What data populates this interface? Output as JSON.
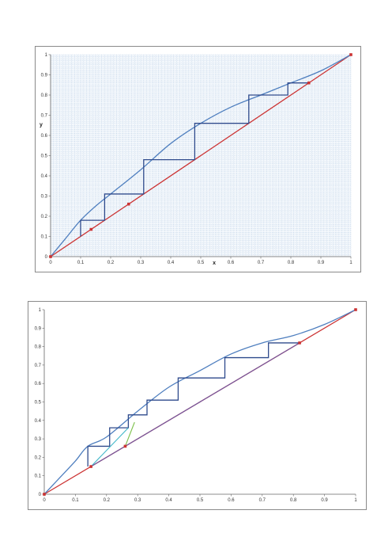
{
  "chart_data": [
    {
      "type": "line",
      "xlabel": "x",
      "ylabel": "y",
      "xlim": [
        0,
        1
      ],
      "ylim": [
        0,
        1
      ],
      "grid": true,
      "x_ticks": [
        "0",
        "0.1",
        "0.2",
        "0.3",
        "0.4",
        "0.5",
        "0.6",
        "0.7",
        "0.8",
        "0.9",
        "1"
      ],
      "y_ticks": [
        "0",
        "0.1",
        "0.2",
        "0.3",
        "0.4",
        "0.5",
        "0.6",
        "0.7",
        "0.8",
        "0.9",
        "1"
      ],
      "colors": {
        "curve": "#4f7fbf",
        "diagonal": "#cc3333",
        "steps": "#2e4a8c",
        "markers": "#cc3333",
        "grid": "#9cb8d8"
      },
      "series": [
        {
          "role": "equilibrium-curve",
          "x": [
            0,
            0.05,
            0.1,
            0.15,
            0.2,
            0.3,
            0.4,
            0.5,
            0.6,
            0.7,
            0.8,
            0.9,
            1
          ],
          "y": [
            0,
            0.09,
            0.18,
            0.25,
            0.31,
            0.43,
            0.56,
            0.66,
            0.74,
            0.8,
            0.86,
            0.92,
            1
          ]
        },
        {
          "role": "diagonal",
          "x": [
            0,
            1
          ],
          "y": [
            0,
            1
          ]
        },
        {
          "role": "stages",
          "x": [
            0.1,
            0.1,
            0.18,
            0.18,
            0.31,
            0.31,
            0.48,
            0.48,
            0.66,
            0.66,
            0.79,
            0.79,
            0.86
          ],
          "y": [
            0.1,
            0.18,
            0.18,
            0.31,
            0.31,
            0.48,
            0.48,
            0.66,
            0.66,
            0.8,
            0.8,
            0.86,
            0.86
          ]
        },
        {
          "role": "points",
          "x": [
            0,
            0.135,
            0.26,
            0.86,
            1
          ],
          "y": [
            0,
            0.135,
            0.26,
            0.86,
            1
          ]
        }
      ]
    },
    {
      "type": "line",
      "xlim": [
        0,
        1
      ],
      "ylim": [
        0,
        1
      ],
      "grid": false,
      "x_ticks": [
        "0",
        "0.1",
        "0.2",
        "0.3",
        "0.4",
        "0.5",
        "0.6",
        "0.7",
        "0.8",
        "0.9",
        "1"
      ],
      "y_ticks": [
        "0",
        "0.1",
        "0.2",
        "0.3",
        "0.4",
        "0.5",
        "0.6",
        "0.7",
        "0.8",
        "0.9",
        "1"
      ],
      "colors": {
        "curve": "#4f7fbf",
        "diagonal": "#cc3333",
        "steps": "#2e4a8c",
        "markers": "#cc3333",
        "cyan": "#3fb6c8",
        "green": "#7cc04a",
        "purple": "#6a5aa8"
      },
      "series": [
        {
          "role": "equilibrium-curve",
          "x": [
            0,
            0.05,
            0.1,
            0.14,
            0.2,
            0.3,
            0.4,
            0.5,
            0.6,
            0.7,
            0.8,
            0.9,
            1
          ],
          "y": [
            0,
            0.09,
            0.18,
            0.26,
            0.31,
            0.45,
            0.58,
            0.67,
            0.76,
            0.82,
            0.86,
            0.92,
            1
          ]
        },
        {
          "role": "diagonal",
          "x": [
            0,
            1
          ],
          "y": [
            0,
            1
          ]
        },
        {
          "role": "stages",
          "x": [
            0.14,
            0.14,
            0.21,
            0.21,
            0.27,
            0.27,
            0.33,
            0.33,
            0.43,
            0.43,
            0.58,
            0.58,
            0.72,
            0.72,
            0.82
          ],
          "y": [
            0.15,
            0.26,
            0.26,
            0.36,
            0.36,
            0.43,
            0.43,
            0.51,
            0.51,
            0.63,
            0.63,
            0.74,
            0.74,
            0.82,
            0.82
          ]
        },
        {
          "role": "operating-line",
          "x": [
            0.15,
            0.82
          ],
          "y": [
            0.15,
            0.82
          ]
        },
        {
          "role": "cyan-line",
          "x": [
            0.15,
            0.27
          ],
          "y": [
            0.15,
            0.36
          ]
        },
        {
          "role": "green-line",
          "x": [
            0.26,
            0.29
          ],
          "y": [
            0.26,
            0.39
          ]
        },
        {
          "role": "points",
          "x": [
            0,
            0.15,
            0.26,
            0.82,
            1
          ],
          "y": [
            0,
            0.15,
            0.26,
            0.82,
            1
          ]
        }
      ]
    }
  ]
}
